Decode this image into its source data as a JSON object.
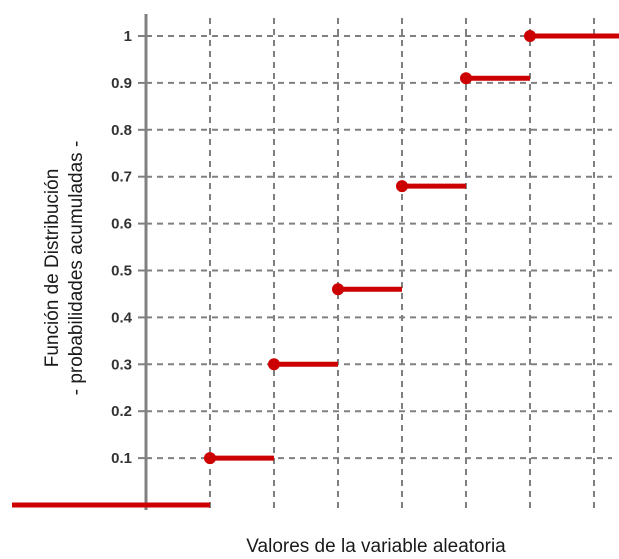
{
  "chart_data": {
    "type": "step",
    "title": "",
    "xlabel": "Valores de la variable aleatoria",
    "ylabel_lines": [
      "Función de Distribución",
      "- probabilidades acumuladas -"
    ],
    "y_ticks": [
      "0.1",
      "0.2",
      "0.3",
      "0.4",
      "0.5",
      "0.6",
      "0.7",
      "0.8",
      "0.9",
      "1"
    ],
    "ylim": [
      0,
      1
    ],
    "x_ticks_labeled": false,
    "grid": true,
    "steps": [
      {
        "x_start": 1,
        "x_end": 2,
        "y": 0.1
      },
      {
        "x_start": 2,
        "x_end": 3,
        "y": 0.3
      },
      {
        "x_start": 3,
        "x_end": 4,
        "y": 0.46
      },
      {
        "x_start": 4,
        "x_end": 5,
        "y": 0.68
      },
      {
        "x_start": 5,
        "x_end": 6,
        "y": 0.91
      },
      {
        "x_start": 6,
        "x_end": 7,
        "y": 1.0
      }
    ],
    "baseline_from": -1,
    "colors": {
      "step": "#cc0000",
      "grid": "#808080",
      "axis": "#808080"
    }
  }
}
